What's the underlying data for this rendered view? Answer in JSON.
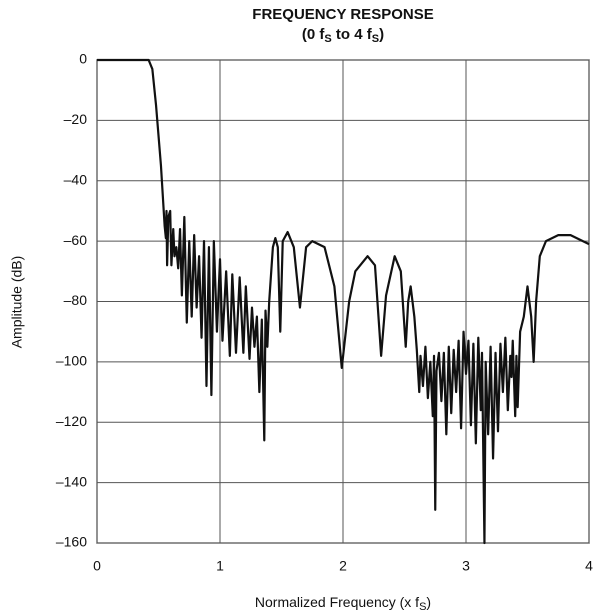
{
  "chart_data": {
    "type": "line",
    "title": "FREQUENCY RESPONSE",
    "subtitle_parts": [
      "(0 f",
      "S",
      " to 4 f",
      "S",
      ")"
    ],
    "x_label_parts": [
      "Normalized Frequency (x f",
      "S",
      ")"
    ],
    "y_label": "Amplitude (dB)",
    "xlim": [
      0,
      4
    ],
    "xticks": [
      0,
      1,
      2,
      3,
      4
    ],
    "ylim": [
      -160,
      0
    ],
    "yticks": [
      {
        "value": -160,
        "label": "–160"
      },
      {
        "value": -140,
        "label": "–140"
      },
      {
        "value": -120,
        "label": "–120"
      },
      {
        "value": -100,
        "label": "–100"
      },
      {
        "value": -80,
        "label": "–80"
      },
      {
        "value": -60,
        "label": "–60"
      },
      {
        "value": -40,
        "label": "–40"
      },
      {
        "value": -20,
        "label": "–20"
      },
      0
    ],
    "grid": true,
    "color": "#111111",
    "x": [
      0,
      0.3,
      0.42,
      0.45,
      0.48,
      0.52,
      0.55,
      0.56,
      0.565,
      0.57,
      0.58,
      0.595,
      0.605,
      0.62,
      0.63,
      0.645,
      0.66,
      0.675,
      0.69,
      0.71,
      0.73,
      0.75,
      0.77,
      0.79,
      0.81,
      0.83,
      0.85,
      0.87,
      0.89,
      0.91,
      0.93,
      0.95,
      0.975,
      1.0,
      1.02,
      1.05,
      1.08,
      1.1,
      1.13,
      1.16,
      1.19,
      1.21,
      1.24,
      1.26,
      1.28,
      1.3,
      1.32,
      1.34,
      1.36,
      1.37,
      1.385,
      1.4,
      1.43,
      1.45,
      1.47,
      1.49,
      1.51,
      1.55,
      1.6,
      1.65,
      1.7,
      1.75,
      1.85,
      1.93,
      1.99,
      2.05,
      2.1,
      2.2,
      2.26,
      2.31,
      2.35,
      2.42,
      2.47,
      2.51,
      2.53,
      2.55,
      2.58,
      2.6,
      2.62,
      2.63,
      2.65,
      2.67,
      2.69,
      2.71,
      2.73,
      2.74,
      2.75,
      2.76,
      2.78,
      2.8,
      2.82,
      2.84,
      2.86,
      2.88,
      2.9,
      2.92,
      2.94,
      2.96,
      2.98,
      3.0,
      3.02,
      3.04,
      3.06,
      3.08,
      3.1,
      3.12,
      3.13,
      3.15,
      3.16,
      3.18,
      3.2,
      3.22,
      3.24,
      3.26,
      3.28,
      3.3,
      3.32,
      3.34,
      3.36,
      3.37,
      3.38,
      3.4,
      3.41,
      3.42,
      3.44,
      3.47,
      3.5,
      3.53,
      3.55,
      3.57,
      3.6,
      3.65,
      3.75,
      3.85,
      3.95,
      4.0
    ],
    "values": [
      0,
      0,
      0,
      -3,
      -15,
      -35,
      -55,
      -59,
      -50,
      -68,
      -52,
      -50,
      -68,
      -56,
      -65,
      -62,
      -69,
      -56,
      -78,
      -52,
      -87,
      -60,
      -85,
      -58,
      -82,
      -65,
      -92,
      -60,
      -108,
      -62,
      -111,
      -60,
      -90,
      -66,
      -93,
      -70,
      -98,
      -71,
      -97,
      -72,
      -97,
      -75,
      -99,
      -82,
      -95,
      -85,
      -110,
      -86,
      -126,
      -83,
      -95,
      -80,
      -62,
      -59,
      -62,
      -90,
      -60,
      -57,
      -62,
      -82,
      -62,
      -60,
      -62,
      -75,
      -102,
      -80,
      -70,
      -65,
      -68,
      -98,
      -78,
      -65,
      -70,
      -95,
      -80,
      -75,
      -85,
      -96,
      -110,
      -98,
      -108,
      -95,
      -112,
      -100,
      -118,
      -98,
      -149,
      -103,
      -97,
      -113,
      -97,
      -124,
      -95,
      -117,
      -96,
      -110,
      -93,
      -122,
      -90,
      -104,
      -93,
      -121,
      -94,
      -127,
      -92,
      -116,
      -97,
      -160,
      -100,
      -124,
      -95,
      -132,
      -97,
      -123,
      -94,
      -110,
      -92,
      -116,
      -98,
      -105,
      -93,
      -118,
      -98,
      -115,
      -90,
      -85,
      -75,
      -85,
      -100,
      -80,
      -65,
      -60,
      -58,
      -58,
      -60,
      -61
    ]
  }
}
